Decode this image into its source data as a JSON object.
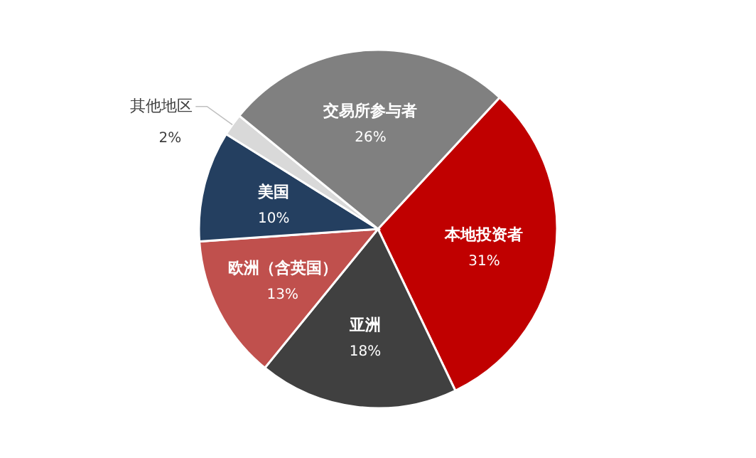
{
  "chart_data": {
    "type": "pie",
    "categories": [
      "本地投资者",
      "亚洲",
      "欧洲（含英国）",
      "美国",
      "其他地区",
      "交易所参与者"
    ],
    "values": [
      31,
      18,
      13,
      10,
      2,
      26
    ],
    "colors": [
      "#c00000",
      "#404040",
      "#c0504d",
      "#243f60",
      "#d9d9d9",
      "#808080"
    ],
    "value_labels": [
      "31%",
      "18%",
      "13%",
      "10%",
      "2%",
      "26%"
    ]
  }
}
